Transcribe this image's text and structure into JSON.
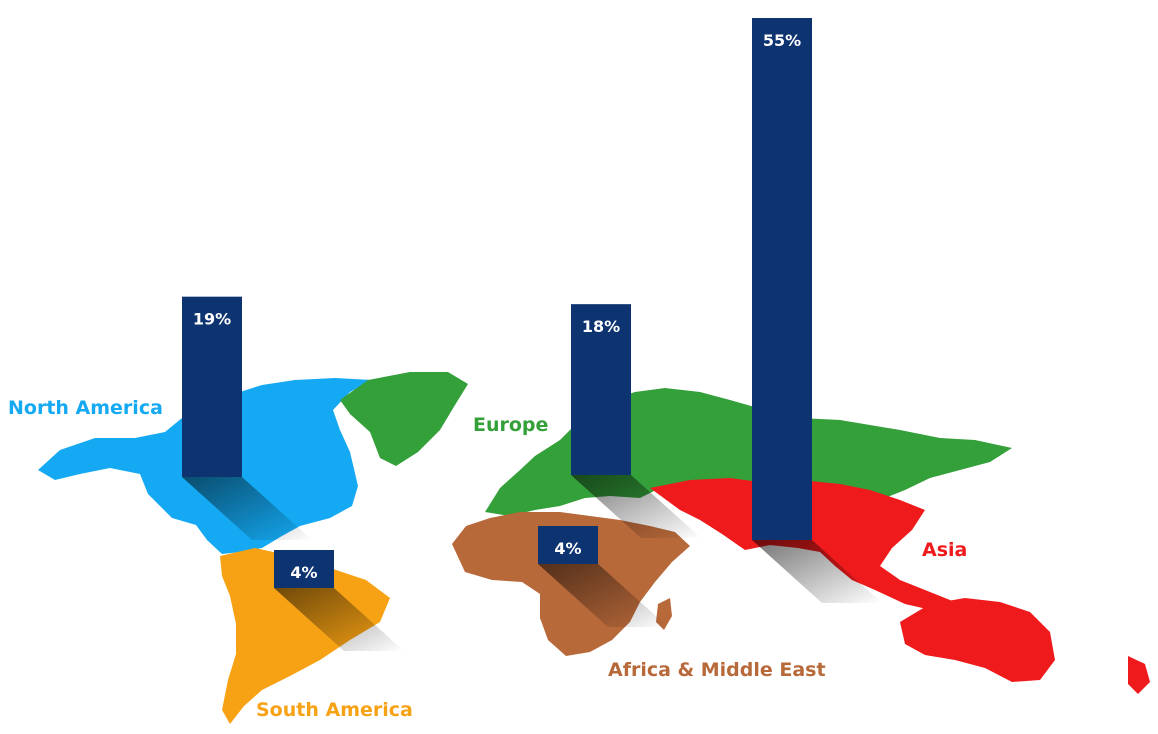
{
  "chart_data": {
    "type": "bar",
    "title": "",
    "xlabel": "",
    "ylabel": "",
    "ylim": [
      0,
      55
    ],
    "unit": "%",
    "grid": false,
    "categories": [
      "North America",
      "South America",
      "Europe",
      "Africa & Middle East",
      "Asia"
    ],
    "values": [
      19,
      4,
      18,
      4,
      55
    ],
    "value_labels": [
      "19%",
      "4%",
      "18%",
      "4%",
      "55%"
    ],
    "region_colors": [
      "#14a9f2",
      "#f7a214",
      "#34a03a",
      "#b8693a",
      "#ef1a1c"
    ],
    "bar_color": "#0d3370"
  }
}
